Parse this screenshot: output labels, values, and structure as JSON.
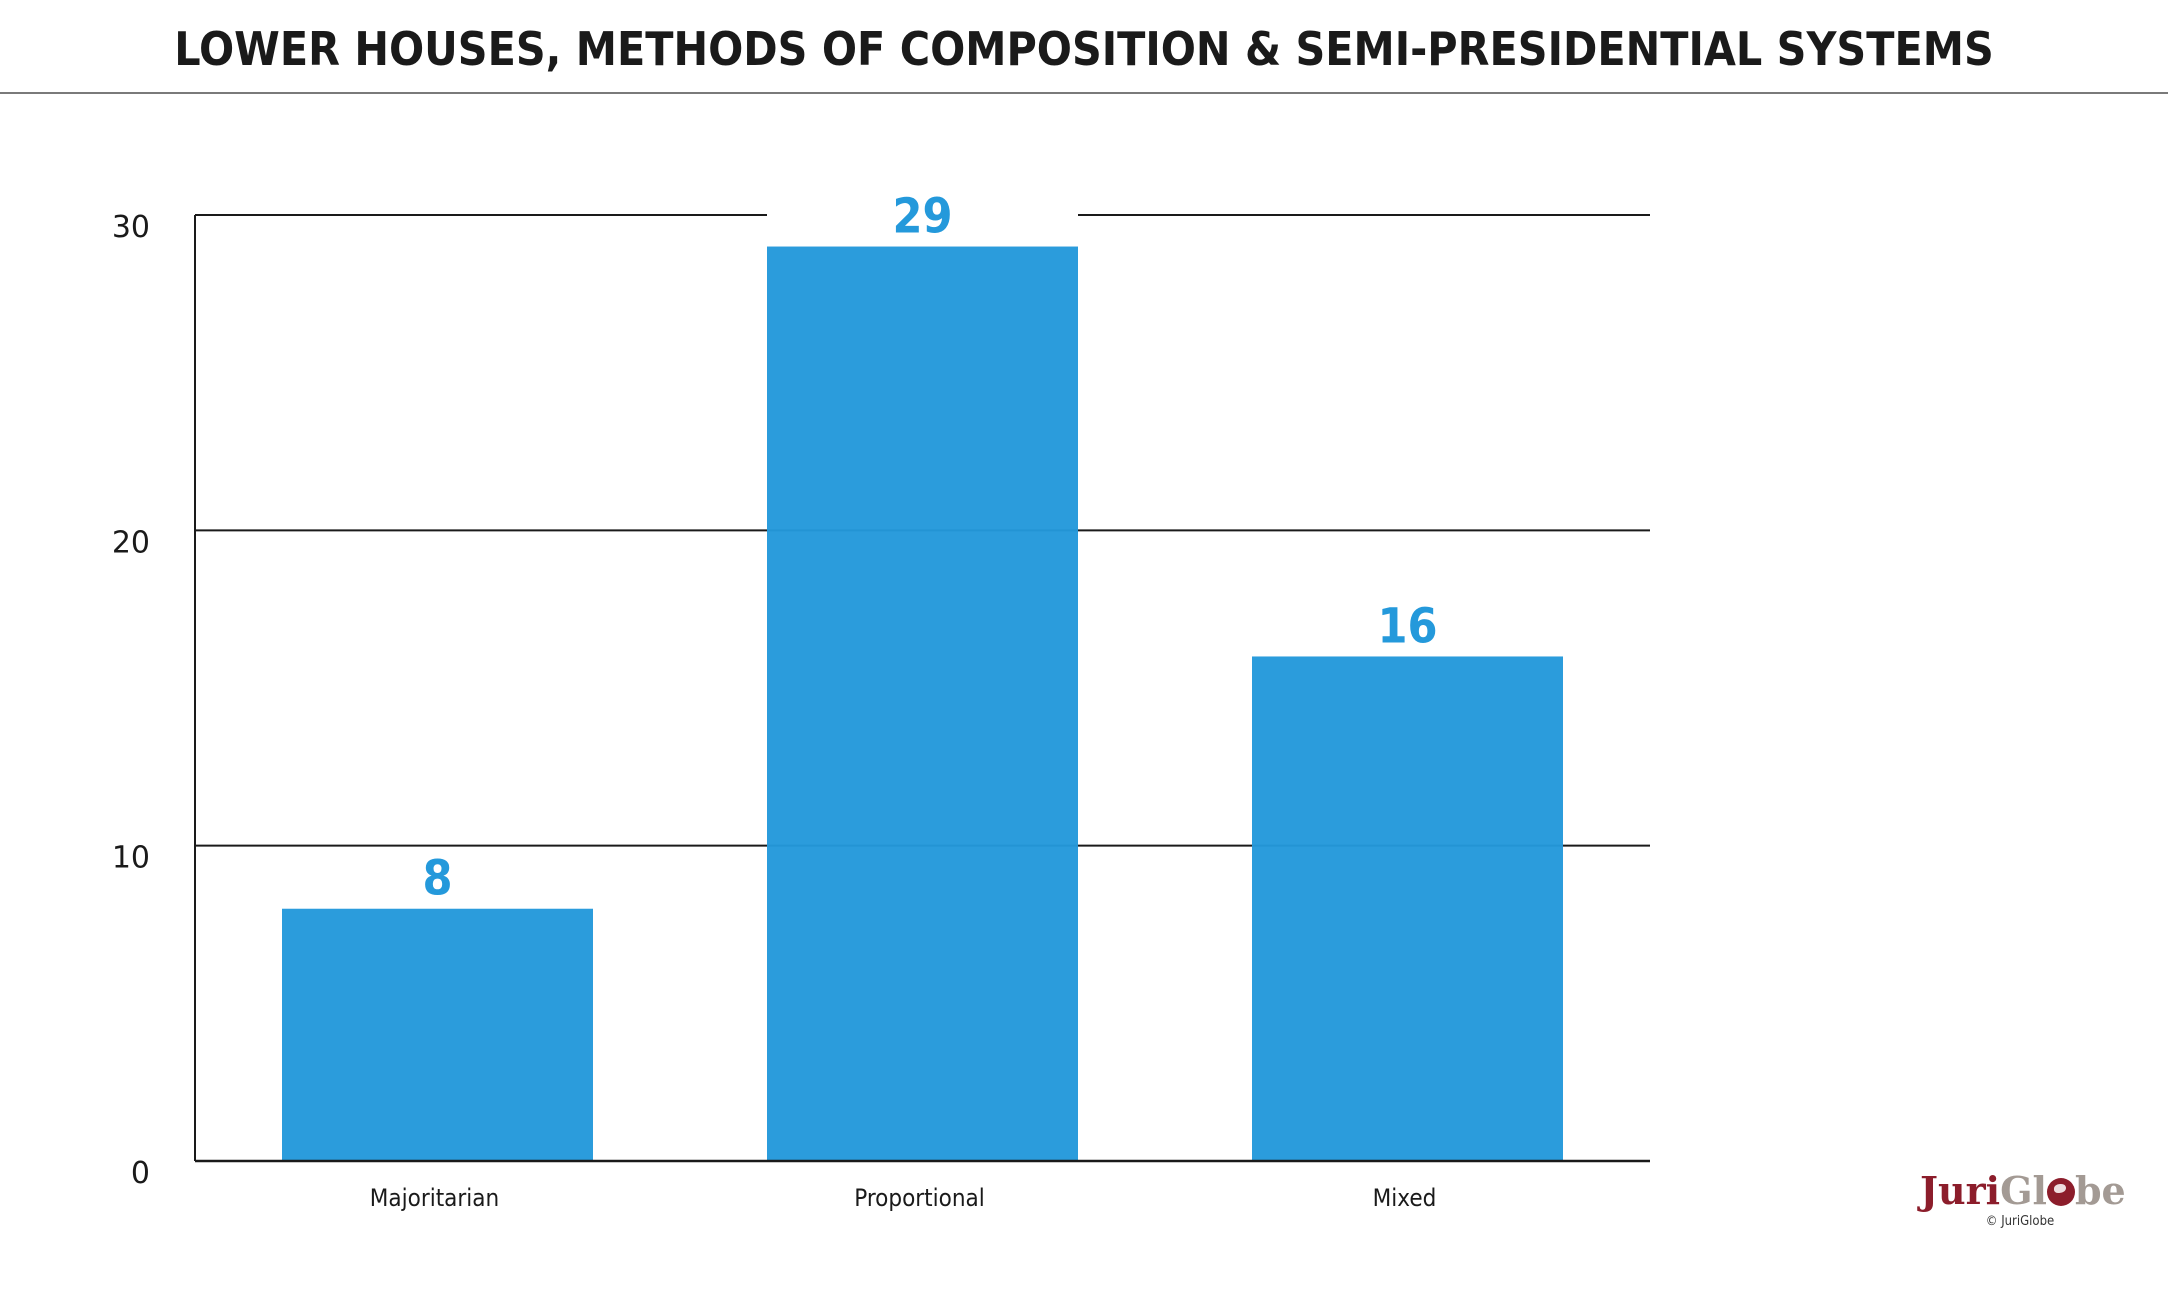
{
  "title": "LOWER HOUSES, METHODS OF COMPOSITION & SEMI-PRESIDENTIAL SYSTEMS",
  "colors": {
    "bar": "#2499db",
    "value_label": "#2499db",
    "grid": "#1a1a1a",
    "logo_primary": "#8c1d2b",
    "logo_secondary": "#a39a94"
  },
  "chart_data": {
    "type": "bar",
    "title": "LOWER HOUSES, METHODS OF COMPOSITION & SEMI-PRESIDENTIAL SYSTEMS",
    "categories": [
      "Majoritarian",
      "Proportional",
      "Mixed"
    ],
    "values": [
      8,
      29,
      16
    ],
    "data_labels": [
      "8",
      "29",
      "16"
    ],
    "xlabel": "",
    "ylabel": "",
    "ylim": [
      0,
      30
    ],
    "yticks": [
      0,
      10,
      20,
      30
    ],
    "ytick_labels": [
      "0",
      "10",
      "20",
      "30"
    ],
    "grid": true,
    "legend": "none"
  },
  "logo": {
    "part1": "Juri",
    "part2": "Gl",
    "part3": "be",
    "copyright": "© JuriGlobe"
  }
}
